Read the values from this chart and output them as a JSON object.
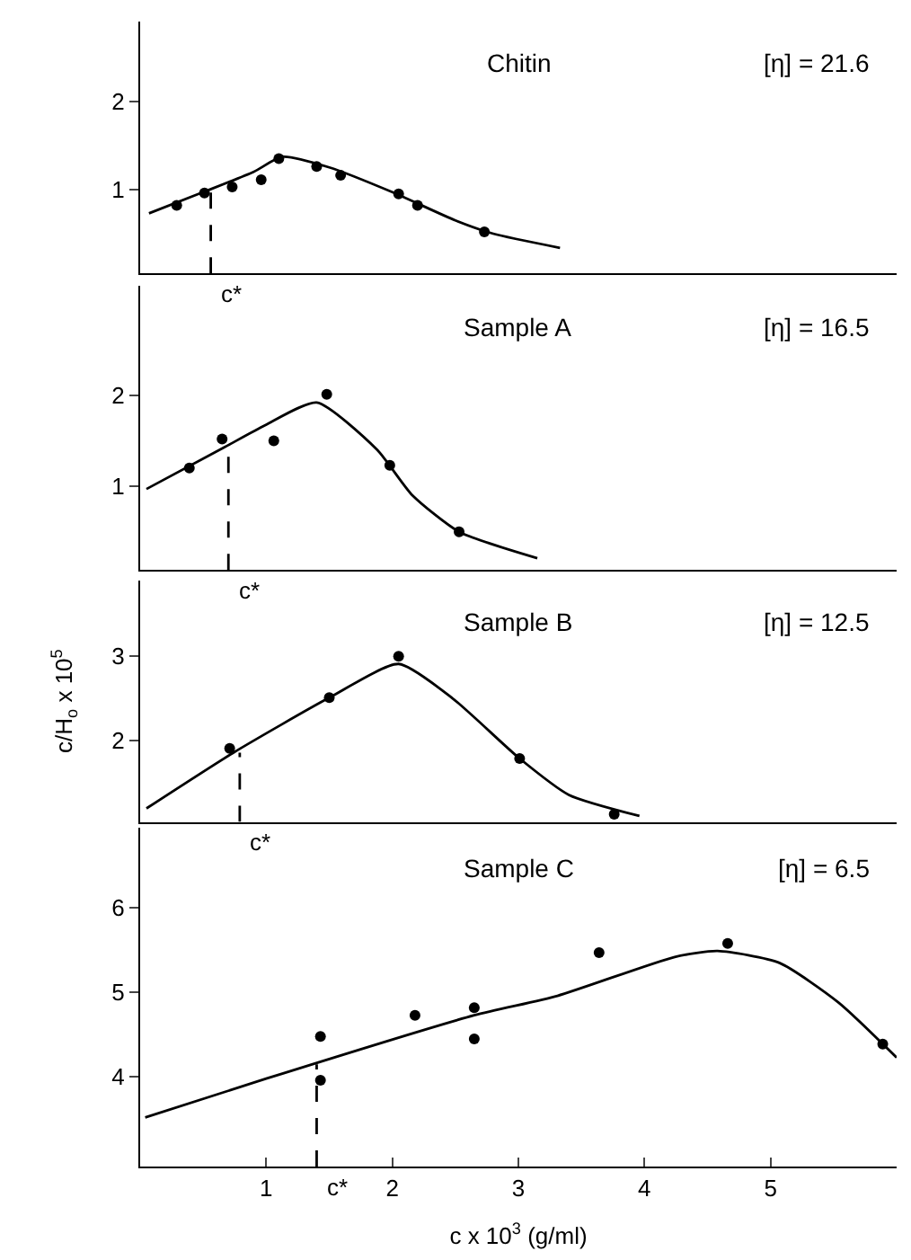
{
  "chart_data": [
    {
      "type": "scatter",
      "title": "Chitin",
      "xlim": [
        0,
        6
      ],
      "ylim": [
        0.05,
        2.9
      ],
      "yticks": [
        1,
        2
      ],
      "tick_labels": "y",
      "marker": "circle",
      "annotations": [
        "[η] = 21.6",
        {
          "text": "c*",
          "x": 0.56,
          "y": 0.05
        }
      ],
      "series": [
        {
          "color": "#000000",
          "x": [
            0.29,
            0.51,
            0.73,
            0.96,
            1.1,
            1.4,
            1.59,
            2.05,
            2.2,
            2.73
          ],
          "values": [
            0.82,
            0.96,
            1.03,
            1.11,
            1.35,
            1.26,
            1.16,
            0.95,
            0.82,
            0.52
          ]
        },
        {
          "type": "line",
          "color": "#000000",
          "line_style": "solid",
          "marker": "none",
          "x": [
            0.07,
            0.5,
            0.9,
            1.13,
            1.5,
            2.0,
            2.5,
            2.8,
            3.33
          ],
          "values": [
            0.73,
            0.97,
            1.2,
            1.37,
            1.25,
            0.97,
            0.65,
            0.5,
            0.34
          ]
        },
        {
          "type": "line",
          "color": "#000000",
          "line_style": "dashed",
          "marker": "none",
          "x": [
            0.56,
            0.56
          ],
          "values": [
            0.05,
            0.99
          ]
        }
      ]
    },
    {
      "type": "scatter",
      "title": "Sample A",
      "xlim": [
        0,
        6
      ],
      "ylim": [
        0.08,
        3.2
      ],
      "yticks": [
        1,
        2
      ],
      "tick_labels": "y",
      "marker": "circle",
      "annotations": [
        "[η] = 16.5",
        {
          "text": "c*",
          "x": 0.7,
          "y": 0.08
        }
      ],
      "series": [
        {
          "color": "#000000",
          "x": [
            0.39,
            0.65,
            1.06,
            1.48,
            1.98,
            2.53
          ],
          "values": [
            1.2,
            1.52,
            1.5,
            2.01,
            1.23,
            0.5
          ]
        },
        {
          "type": "line",
          "color": "#000000",
          "line_style": "solid",
          "marker": "none",
          "x": [
            0.05,
            0.67,
            0.99,
            1.4,
            1.88,
            2.16,
            2.53,
            3.15
          ],
          "values": [
            0.97,
            1.43,
            1.67,
            1.92,
            1.4,
            0.9,
            0.5,
            0.21
          ]
        },
        {
          "type": "line",
          "color": "#000000",
          "line_style": "dashed",
          "marker": "none",
          "x": [
            0.7,
            0.7
          ],
          "values": [
            0.08,
            1.45
          ]
        }
      ]
    },
    {
      "type": "scatter",
      "title": "Sample B",
      "ylabel": "c/H$_{o}$ x 10$^{5}$",
      "xlim": [
        0,
        6
      ],
      "ylim": [
        1.04,
        3.9
      ],
      "yticks": [
        2,
        3
      ],
      "tick_labels": "y",
      "marker": "circle",
      "annotations": [
        "[η] = 12.5",
        {
          "text": "c*",
          "x": 0.79,
          "y": 1.04
        }
      ],
      "series": [
        {
          "color": "#000000",
          "x": [
            0.71,
            1.5,
            2.05,
            3.01,
            3.76
          ],
          "values": [
            1.91,
            2.51,
            3.0,
            1.79,
            1.13
          ]
        },
        {
          "type": "line",
          "color": "#000000",
          "line_style": "solid",
          "marker": "none",
          "x": [
            0.05,
            0.74,
            1.5,
            2.05,
            2.48,
            3.01,
            3.4,
            3.96
          ],
          "values": [
            1.2,
            1.86,
            2.51,
            2.91,
            2.5,
            1.79,
            1.36,
            1.11
          ]
        },
        {
          "type": "line",
          "color": "#000000",
          "line_style": "dashed",
          "marker": "none",
          "x": [
            0.79,
            0.79
          ],
          "values": [
            1.04,
            1.86
          ]
        }
      ]
    },
    {
      "type": "scatter",
      "title": "Sample C",
      "xlabel": "c x 10$^{3}$ (g/ml)",
      "xlim": [
        0,
        6
      ],
      "xticks": [
        1,
        2,
        3,
        4,
        5
      ],
      "ylim": [
        2.94,
        6.95
      ],
      "yticks": [
        4,
        5,
        6
      ],
      "marker": "circle",
      "annotations": [
        "[η] = 6.5",
        {
          "text": "c*",
          "x": 1.4,
          "y": 2.94
        }
      ],
      "series": [
        {
          "color": "#000000",
          "x": [
            1.43,
            1.43,
            2.18,
            2.65,
            2.65,
            3.64,
            4.66,
            5.89
          ],
          "values": [
            4.48,
            3.96,
            4.73,
            4.82,
            4.45,
            5.47,
            5.58,
            4.39
          ]
        },
        {
          "type": "line",
          "color": "#000000",
          "line_style": "solid",
          "marker": "none",
          "x": [
            0.04,
            1.0,
            2.65,
            3.31,
            4.24,
            4.58,
            5.07,
            5.54,
            6.0
          ],
          "values": [
            3.52,
            3.98,
            4.73,
            4.96,
            5.42,
            5.49,
            5.35,
            4.88,
            4.23
          ]
        },
        {
          "type": "line",
          "color": "#000000",
          "line_style": "dashed",
          "marker": "none",
          "x": [
            1.4,
            1.4
          ],
          "values": [
            2.94,
            4.15
          ]
        }
      ]
    }
  ]
}
